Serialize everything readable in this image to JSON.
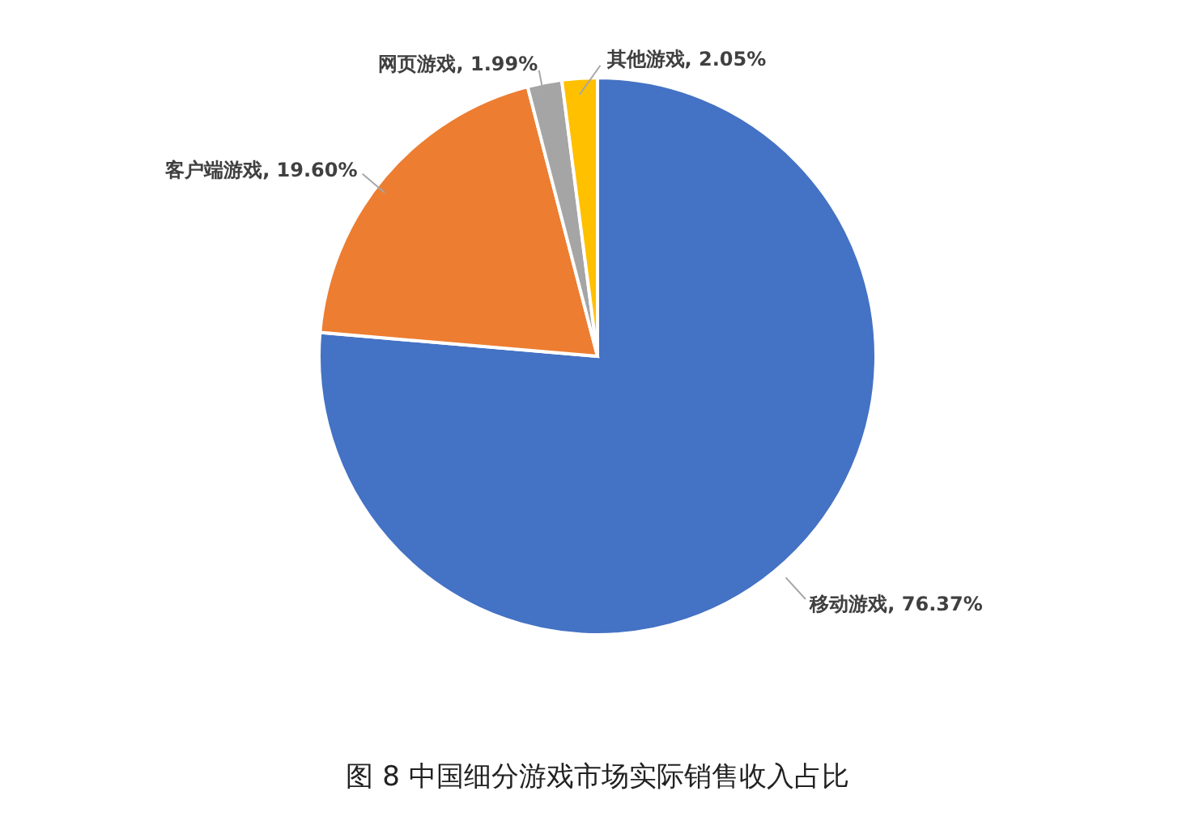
{
  "chart_data": {
    "type": "pie",
    "title": "图 8 中国细分游戏市场实际销售收入占比",
    "categories": [
      "移动游戏",
      "客户端游戏",
      "网页游戏",
      "其他游戏"
    ],
    "values": [
      76.37,
      19.6,
      1.99,
      2.05
    ],
    "value_labels": [
      "76.37%",
      "19.60%",
      "1.99%",
      "2.05%"
    ],
    "colors": [
      "#4472c4",
      "#ed7d31",
      "#a5a5a5",
      "#ffc000"
    ]
  }
}
